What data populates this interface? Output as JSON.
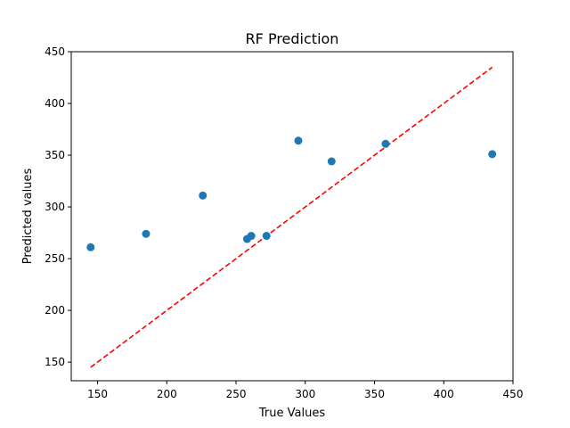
{
  "chart_data": {
    "type": "scatter",
    "title": "RF Prediction",
    "xlabel": "True Values",
    "ylabel": "Predicted values",
    "xlim": [
      131,
      450
    ],
    "ylim": [
      132,
      450
    ],
    "xticks": [
      150,
      200,
      250,
      300,
      350,
      400,
      450
    ],
    "yticks": [
      150,
      200,
      250,
      300,
      350,
      400,
      450
    ],
    "grid": false,
    "points": [
      {
        "x": 145,
        "y": 261
      },
      {
        "x": 185,
        "y": 274
      },
      {
        "x": 226,
        "y": 311
      },
      {
        "x": 258,
        "y": 269
      },
      {
        "x": 261,
        "y": 272
      },
      {
        "x": 272,
        "y": 272
      },
      {
        "x": 295,
        "y": 364
      },
      {
        "x": 319,
        "y": 344
      },
      {
        "x": 358,
        "y": 361
      },
      {
        "x": 435,
        "y": 351
      }
    ],
    "reference_line": {
      "x": [
        145,
        435
      ],
      "y": [
        145,
        435
      ],
      "style": "dashed"
    },
    "colors": {
      "points": "#1f77b4",
      "reference_line": "#ff0000"
    }
  }
}
